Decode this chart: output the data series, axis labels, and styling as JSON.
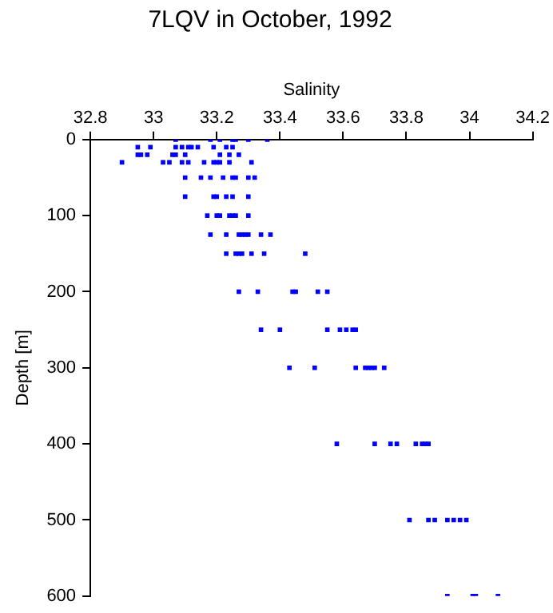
{
  "chart_data": {
    "type": "scatter",
    "title": "7LQV in October, 1992",
    "xlabel": "Salinity",
    "ylabel": "Depth [m]",
    "xlim": [
      32.8,
      34.2
    ],
    "xticks": [
      32.8,
      33,
      33.2,
      33.4,
      33.6,
      33.8,
      34,
      34.2
    ],
    "ylim": [
      600,
      0
    ],
    "yticks": [
      0,
      100,
      200,
      300,
      400,
      500,
      600
    ],
    "grid": false,
    "legend": false,
    "marker": "square",
    "series": [
      {
        "color": "#0000ff",
        "x": [
          33.07,
          33.18,
          33.21,
          33.25,
          33.26,
          33.3,
          33.36,
          32.95,
          32.99,
          33.07,
          33.09,
          33.11,
          33.12,
          33.14,
          33.19,
          33.23,
          33.25,
          32.95,
          32.96,
          32.98,
          33.06,
          33.07,
          33.1,
          33.21,
          33.24,
          33.27,
          32.9,
          33.03,
          33.05,
          33.09,
          33.11,
          33.16,
          33.19,
          33.2,
          33.21,
          33.24,
          33.31,
          33.1,
          33.15,
          33.18,
          33.22,
          33.25,
          33.26,
          33.3,
          33.32,
          33.1,
          33.19,
          33.2,
          33.23,
          33.25,
          33.3,
          33.17,
          33.2,
          33.21,
          33.24,
          33.25,
          33.26,
          33.3,
          33.18,
          33.23,
          33.27,
          33.28,
          33.29,
          33.3,
          33.34,
          33.37,
          33.23,
          33.26,
          33.27,
          33.28,
          33.31,
          33.35,
          33.48,
          33.27,
          33.33,
          33.44,
          33.45,
          33.52,
          33.55,
          33.34,
          33.4,
          33.55,
          33.59,
          33.61,
          33.63,
          33.64,
          33.43,
          33.51,
          33.64,
          33.67,
          33.68,
          33.69,
          33.7,
          33.73,
          33.58,
          33.7,
          33.75,
          33.77,
          33.83,
          33.85,
          33.86,
          33.87,
          33.81,
          33.87,
          33.89,
          33.93,
          33.95,
          33.97,
          33.99,
          33.93,
          34.01,
          34.02,
          34.09
        ],
        "values": [
          0,
          0,
          0,
          0,
          0,
          0,
          0,
          10,
          10,
          10,
          10,
          10,
          10,
          10,
          10,
          10,
          10,
          20,
          20,
          20,
          20,
          20,
          20,
          20,
          20,
          20,
          30,
          30,
          30,
          30,
          30,
          30,
          30,
          30,
          30,
          30,
          30,
          50,
          50,
          50,
          50,
          50,
          50,
          50,
          50,
          75,
          75,
          75,
          75,
          75,
          75,
          100,
          100,
          100,
          100,
          100,
          100,
          100,
          125,
          125,
          125,
          125,
          125,
          125,
          125,
          125,
          150,
          150,
          150,
          150,
          150,
          150,
          150,
          200,
          200,
          200,
          200,
          200,
          200,
          250,
          250,
          250,
          250,
          250,
          250,
          250,
          300,
          300,
          300,
          300,
          300,
          300,
          300,
          300,
          400,
          400,
          400,
          400,
          400,
          400,
          400,
          400,
          500,
          500,
          500,
          500,
          500,
          500,
          500,
          600,
          600,
          600,
          600
        ]
      }
    ]
  }
}
